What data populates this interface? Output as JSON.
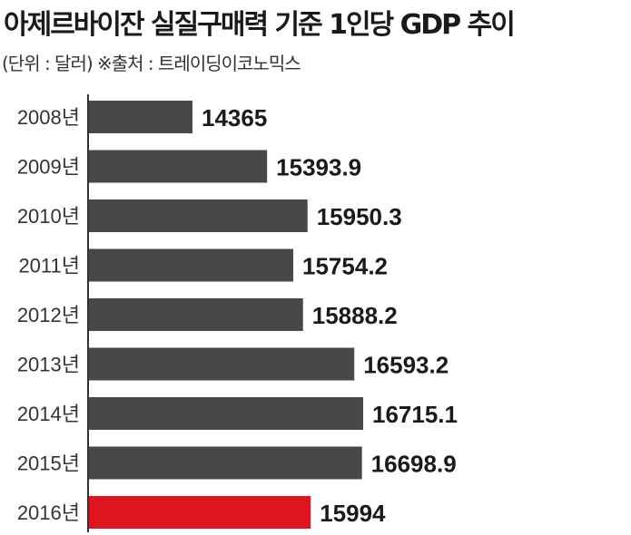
{
  "header": {
    "title": "아제르바이잔 실질구매력 기준 1인당 GDP 추이",
    "subtitle": "(단위 : 달러) ※출처 : 트레이딩이코노믹스"
  },
  "colors": {
    "bar": "#4a4748",
    "highlight": "#e0141e",
    "axis": "#333333"
  },
  "chart_data": {
    "type": "bar",
    "orientation": "horizontal",
    "title": "아제르바이잔 실질구매력 기준 1인당 GDP 추이",
    "subtitle": "(단위 : 달러) ※출처 : 트레이딩이코노믹스",
    "categories": [
      "2008년",
      "2009년",
      "2010년",
      "2011년",
      "2012년",
      "2013년",
      "2014년",
      "2015년",
      "2016년"
    ],
    "values": [
      14365,
      15393.9,
      15950.3,
      15754.2,
      15888.2,
      16593.2,
      16715.1,
      16698.9,
      15994
    ],
    "value_labels": [
      "14365",
      "15393.9",
      "15950.3",
      "15754.2",
      "15888.2",
      "16593.2",
      "16715.1",
      "16698.9",
      "15994"
    ],
    "highlight_index": 8,
    "grid": false,
    "legend": "none"
  }
}
